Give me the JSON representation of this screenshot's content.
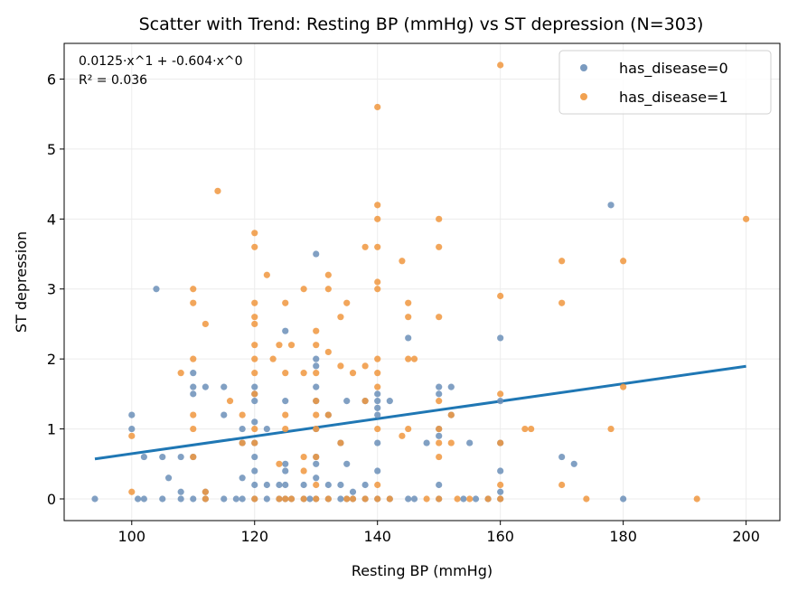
{
  "chart_data": {
    "type": "scatter",
    "title": "Scatter with Trend: Resting BP (mmHg) vs ST depression (N=303)",
    "xlabel": "Resting BP (mmHg)",
    "ylabel": "ST depression",
    "xlim": [
      89,
      205.5
    ],
    "ylim": [
      -0.31,
      6.51
    ],
    "xticks": [
      100,
      120,
      140,
      160,
      180,
      200
    ],
    "yticks": [
      0,
      1,
      2,
      3,
      4,
      5,
      6
    ],
    "grid": true,
    "legend_position": "top-right",
    "annotation": {
      "line1": "0.0125·x^1 + -0.604·x^0",
      "line2": "R² = 0.036"
    },
    "trend": {
      "slope": 0.0125,
      "intercept": -0.604,
      "x_range": [
        94,
        200
      ],
      "color": "#1f77b4"
    },
    "series": [
      {
        "name": "has_disease=0",
        "color": "#6b8fb8",
        "points": [
          [
            94,
            0
          ],
          [
            100,
            1.2
          ],
          [
            100,
            1.0
          ],
          [
            101,
            0
          ],
          [
            102,
            0
          ],
          [
            102,
            0.6
          ],
          [
            104,
            3.0
          ],
          [
            105,
            0
          ],
          [
            105,
            0.6
          ],
          [
            106,
            0.3
          ],
          [
            108,
            0.1
          ],
          [
            108,
            0.6
          ],
          [
            108,
            0
          ],
          [
            110,
            1.8
          ],
          [
            110,
            1.6
          ],
          [
            110,
            1.5
          ],
          [
            110,
            0.6
          ],
          [
            110,
            0
          ],
          [
            112,
            1.6
          ],
          [
            112,
            0.1
          ],
          [
            112,
            0
          ],
          [
            115,
            1.6
          ],
          [
            115,
            1.2
          ],
          [
            115,
            0
          ],
          [
            117,
            0
          ],
          [
            118,
            1.0
          ],
          [
            118,
            0.8
          ],
          [
            118,
            0.3
          ],
          [
            118,
            0
          ],
          [
            120,
            1.6
          ],
          [
            120,
            1.5
          ],
          [
            120,
            1.4
          ],
          [
            120,
            1.1
          ],
          [
            120,
            0.8
          ],
          [
            120,
            0.6
          ],
          [
            120,
            0.4
          ],
          [
            120,
            0.2
          ],
          [
            120,
            0
          ],
          [
            122,
            1.0
          ],
          [
            122,
            0.2
          ],
          [
            122,
            0
          ],
          [
            124,
            0.2
          ],
          [
            124,
            0
          ],
          [
            125,
            2.4
          ],
          [
            125,
            1.4
          ],
          [
            125,
            0.5
          ],
          [
            125,
            0.4
          ],
          [
            125,
            0.2
          ],
          [
            125,
            0
          ],
          [
            126,
            0
          ],
          [
            128,
            0.2
          ],
          [
            128,
            0
          ],
          [
            129,
            0
          ],
          [
            130,
            3.5
          ],
          [
            130,
            2.0
          ],
          [
            130,
            1.9
          ],
          [
            130,
            1.6
          ],
          [
            130,
            1.4
          ],
          [
            130,
            1.0
          ],
          [
            130,
            0.6
          ],
          [
            130,
            0.5
          ],
          [
            130,
            0.3
          ],
          [
            130,
            0
          ],
          [
            132,
            1.2
          ],
          [
            132,
            0.2
          ],
          [
            132,
            0
          ],
          [
            134,
            0.8
          ],
          [
            134,
            0.2
          ],
          [
            134,
            0
          ],
          [
            135,
            1.4
          ],
          [
            135,
            0.5
          ],
          [
            135,
            0
          ],
          [
            136,
            0.1
          ],
          [
            136,
            0
          ],
          [
            138,
            1.4
          ],
          [
            138,
            0.2
          ],
          [
            138,
            0
          ],
          [
            140,
            1.5
          ],
          [
            140,
            1.4
          ],
          [
            140,
            1.3
          ],
          [
            140,
            1.2
          ],
          [
            140,
            0.8
          ],
          [
            140,
            0.4
          ],
          [
            140,
            0
          ],
          [
            142,
            1.4
          ],
          [
            142,
            0
          ],
          [
            145,
            2.3
          ],
          [
            145,
            0
          ],
          [
            146,
            0
          ],
          [
            148,
            0.8
          ],
          [
            150,
            1.6
          ],
          [
            150,
            1.5
          ],
          [
            150,
            1.0
          ],
          [
            150,
            0.9
          ],
          [
            150,
            0.2
          ],
          [
            150,
            0
          ],
          [
            152,
            1.6
          ],
          [
            152,
            1.2
          ],
          [
            154,
            0
          ],
          [
            155,
            0.8
          ],
          [
            156,
            0
          ],
          [
            158,
            0
          ],
          [
            160,
            2.3
          ],
          [
            160,
            1.4
          ],
          [
            160,
            0.8
          ],
          [
            160,
            0.4
          ],
          [
            160,
            0.1
          ],
          [
            160,
            0
          ],
          [
            170,
            0.6
          ],
          [
            172,
            0.5
          ],
          [
            178,
            4.2
          ],
          [
            180,
            0
          ]
        ]
      },
      {
        "name": "has_disease=1",
        "color": "#f0973e",
        "points": [
          [
            100,
            0.9
          ],
          [
            100,
            0.1
          ],
          [
            108,
            1.8
          ],
          [
            110,
            3.0
          ],
          [
            110,
            2.8
          ],
          [
            110,
            2.0
          ],
          [
            110,
            1.2
          ],
          [
            110,
            1.0
          ],
          [
            110,
            0.6
          ],
          [
            112,
            2.5
          ],
          [
            112,
            0.1
          ],
          [
            112,
            0
          ],
          [
            114,
            4.4
          ],
          [
            116,
            1.4
          ],
          [
            118,
            1.2
          ],
          [
            118,
            0.8
          ],
          [
            120,
            3.8
          ],
          [
            120,
            3.6
          ],
          [
            120,
            2.8
          ],
          [
            120,
            2.6
          ],
          [
            120,
            2.5
          ],
          [
            120,
            2.2
          ],
          [
            120,
            2.0
          ],
          [
            120,
            1.8
          ],
          [
            120,
            1.5
          ],
          [
            120,
            1.0
          ],
          [
            120,
            0.8
          ],
          [
            120,
            0
          ],
          [
            122,
            3.2
          ],
          [
            123,
            2.0
          ],
          [
            124,
            2.2
          ],
          [
            124,
            0.5
          ],
          [
            124,
            0
          ],
          [
            125,
            2.8
          ],
          [
            125,
            1.8
          ],
          [
            125,
            1.2
          ],
          [
            125,
            1.0
          ],
          [
            125,
            0
          ],
          [
            126,
            2.2
          ],
          [
            126,
            0
          ],
          [
            128,
            3.0
          ],
          [
            128,
            1.8
          ],
          [
            128,
            0.6
          ],
          [
            128,
            0.4
          ],
          [
            128,
            0
          ],
          [
            130,
            2.4
          ],
          [
            130,
            2.2
          ],
          [
            130,
            1.8
          ],
          [
            130,
            1.4
          ],
          [
            130,
            1.2
          ],
          [
            130,
            1.0
          ],
          [
            130,
            0.6
          ],
          [
            130,
            0.2
          ],
          [
            130,
            0
          ],
          [
            132,
            3.2
          ],
          [
            132,
            3.0
          ],
          [
            132,
            2.1
          ],
          [
            132,
            1.2
          ],
          [
            132,
            0
          ],
          [
            134,
            2.6
          ],
          [
            134,
            1.9
          ],
          [
            134,
            0.8
          ],
          [
            135,
            2.8
          ],
          [
            135,
            0
          ],
          [
            136,
            1.8
          ],
          [
            136,
            0
          ],
          [
            138,
            3.6
          ],
          [
            138,
            1.9
          ],
          [
            138,
            1.4
          ],
          [
            138,
            0
          ],
          [
            140,
            5.6
          ],
          [
            140,
            4.2
          ],
          [
            140,
            4.0
          ],
          [
            140,
            3.6
          ],
          [
            140,
            3.1
          ],
          [
            140,
            3.0
          ],
          [
            140,
            2.0
          ],
          [
            140,
            1.8
          ],
          [
            140,
            1.6
          ],
          [
            140,
            1.0
          ],
          [
            140,
            0.2
          ],
          [
            140,
            0
          ],
          [
            142,
            0
          ],
          [
            144,
            3.4
          ],
          [
            144,
            0.9
          ],
          [
            145,
            2.8
          ],
          [
            145,
            2.6
          ],
          [
            145,
            2.0
          ],
          [
            145,
            1.0
          ],
          [
            146,
            2.0
          ],
          [
            148,
            0
          ],
          [
            150,
            4.0
          ],
          [
            150,
            3.6
          ],
          [
            150,
            2.6
          ],
          [
            150,
            1.4
          ],
          [
            150,
            1.0
          ],
          [
            150,
            0.8
          ],
          [
            150,
            0.6
          ],
          [
            150,
            0
          ],
          [
            152,
            1.2
          ],
          [
            152,
            0.8
          ],
          [
            153,
            0
          ],
          [
            155,
            0
          ],
          [
            158,
            0
          ],
          [
            160,
            6.2
          ],
          [
            160,
            2.9
          ],
          [
            160,
            1.5
          ],
          [
            160,
            0.8
          ],
          [
            160,
            0.2
          ],
          [
            160,
            0
          ],
          [
            164,
            1.0
          ],
          [
            165,
            1.0
          ],
          [
            170,
            3.4
          ],
          [
            170,
            2.8
          ],
          [
            170,
            0.2
          ],
          [
            174,
            0
          ],
          [
            178,
            1.0
          ],
          [
            180,
            3.4
          ],
          [
            180,
            1.6
          ],
          [
            192,
            0
          ],
          [
            200,
            4.0
          ]
        ]
      }
    ]
  }
}
